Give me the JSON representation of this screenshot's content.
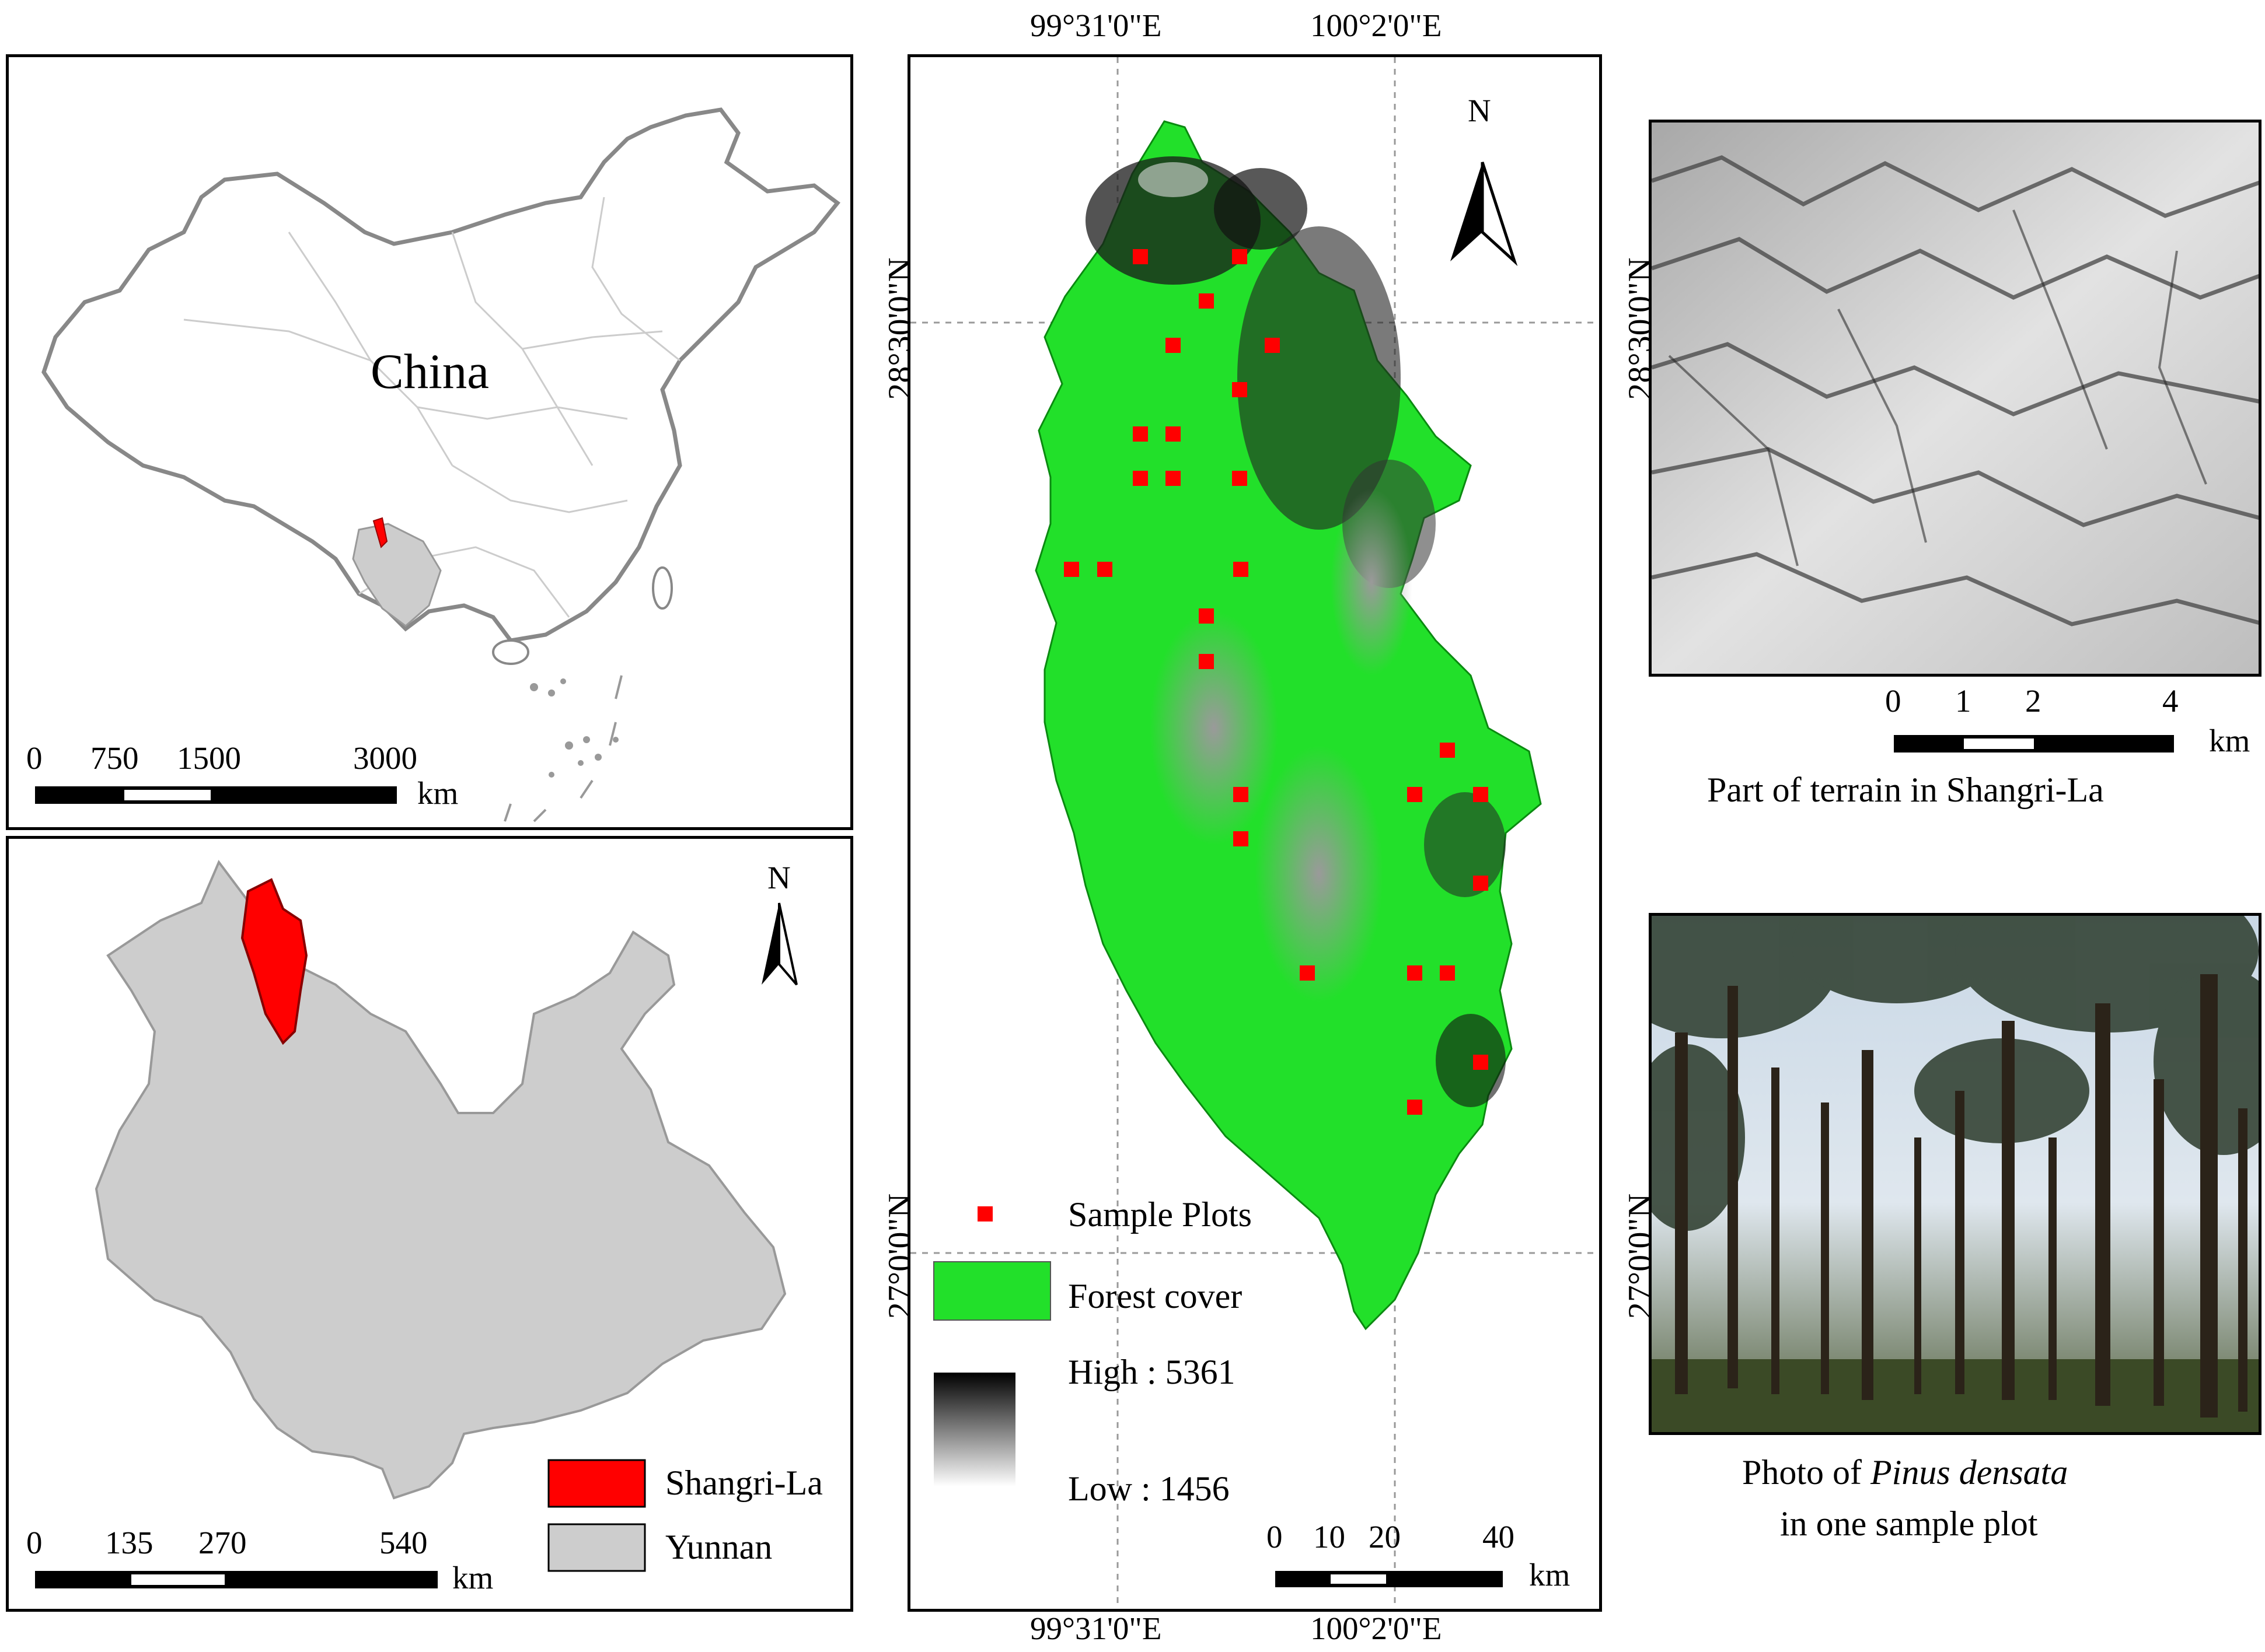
{
  "china_panel": {
    "label": "China",
    "scale": {
      "ticks": [
        "0",
        "750",
        "1500",
        "3000"
      ],
      "unit": "km"
    }
  },
  "yunnan_panel": {
    "north": "N",
    "legend": [
      {
        "label": "Shangri-La",
        "color": "#ff0000"
      },
      {
        "label": "Yunnan",
        "color": "#cdcdcd"
      }
    ],
    "scale": {
      "ticks": [
        "0",
        "135",
        "270",
        "540"
      ],
      "unit": "km"
    }
  },
  "main_map": {
    "top_labels": [
      "99°31'0\"E",
      "100°2'0\"E"
    ],
    "bottom_labels": [
      "99°31'0\"E",
      "100°2'0\"E"
    ],
    "left_labels": [
      "28°30'0\"N",
      "27°0'0\"N"
    ],
    "north": "N",
    "legend": {
      "sample_plots": "Sample Plots",
      "forest_cover": "Forest cover",
      "high": "High : 5361",
      "low": "Low : 1456"
    },
    "colors": {
      "forest": "#22e02a",
      "plot": "#ff0000"
    },
    "scale": {
      "ticks": [
        "0",
        "10",
        "20",
        "40"
      ],
      "unit": "km"
    }
  },
  "terrain_panel": {
    "caption": "Part of terrain in Shangri-La",
    "left_label": "28°30'0\"N",
    "scale": {
      "ticks": [
        "0",
        "1",
        "2",
        "4"
      ],
      "unit": "km"
    }
  },
  "photo_panel": {
    "caption_prefix": "Photo of ",
    "species": "Pinus densata",
    "caption_line2": "in one sample plot",
    "left_label": "27°0'0\"N"
  }
}
